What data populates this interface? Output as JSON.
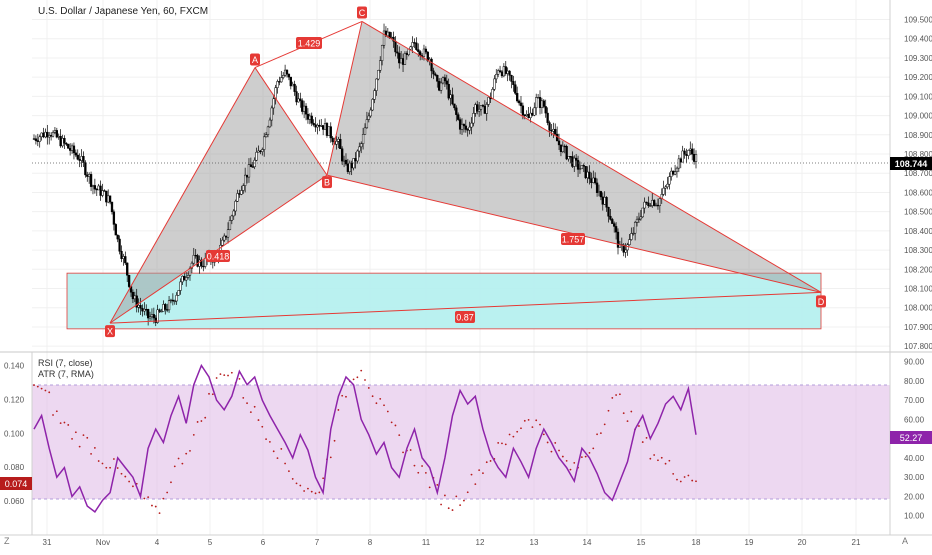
{
  "header": {
    "title": "U.S. Dollar / Japanese Yen, 60, FXCM"
  },
  "price_scale": {
    "ticks": [
      "109.500",
      "109.400",
      "109.300",
      "109.200",
      "109.100",
      "109.000",
      "108.900",
      "108.800",
      "108.700",
      "108.600",
      "108.500",
      "108.400",
      "108.300",
      "108.200",
      "108.100",
      "108.000",
      "107.900",
      "107.800"
    ],
    "last_price": "108.744"
  },
  "indicators": {
    "rsi_label": "RSI (7, close)",
    "atr_label": "ATR (7, RMA)",
    "atr_ticks": [
      "0.140",
      "0.120",
      "0.100",
      "0.080",
      "0.060"
    ],
    "rsi_ticks": [
      "90.00",
      "80.00",
      "70.00",
      "60.00",
      "50.00",
      "40.00",
      "30.00",
      "20.00",
      "10.00"
    ],
    "rsi_value": "52.27",
    "atr_value": "0.074"
  },
  "time_axis": {
    "labels": [
      "31",
      "Nov",
      "4",
      "5",
      "6",
      "7",
      "8",
      "11",
      "12",
      "13",
      "14",
      "15",
      "18",
      "19",
      "20",
      "21"
    ],
    "left_corner": "Z",
    "right_corner": "A"
  },
  "pattern": {
    "points": [
      {
        "label": "X",
        "price": 107.92
      },
      {
        "label": "A",
        "price": 109.25
      },
      {
        "label": "B",
        "price": 108.69
      },
      {
        "label": "C",
        "price": 109.49
      },
      {
        "label": "D",
        "price": 108.08
      }
    ],
    "ratios": [
      "1.429",
      "0.418",
      "1.757",
      "0.87"
    ]
  },
  "colors": {
    "up": "#26a69a",
    "candle": "#000000",
    "pattern_fill": "#9e9e9e",
    "pattern_line": "#e53935",
    "zone_fill": "#b2f0ee",
    "rsi": "#8e24aa",
    "rsi_band": "#e1bee7",
    "atr": "#b71c1c",
    "label_bg": "#e53935"
  },
  "chart_data": {
    "type": "candlestick",
    "title": "U.S. Dollar / Japanese Yen, 60, FXCM",
    "ylim": [
      107.78,
      109.56
    ],
    "rsi_ylim": [
      0,
      95
    ],
    "rsi_band": [
      20,
      80
    ],
    "atr_ylim": [
      0.04,
      0.148
    ],
    "close_path": [
      [
        0,
        108.88
      ],
      [
        2,
        108.92
      ],
      [
        4,
        108.85
      ],
      [
        6,
        108.78
      ],
      [
        8,
        108.62
      ],
      [
        9,
        108.6
      ],
      [
        10,
        108.55
      ],
      [
        11,
        108.35
      ],
      [
        12,
        108.22
      ],
      [
        13,
        108.05
      ],
      [
        14,
        108.0
      ],
      [
        15,
        107.95
      ],
      [
        16,
        107.95
      ],
      [
        17,
        107.99
      ],
      [
        18,
        108.02
      ],
      [
        19,
        108.1
      ],
      [
        20,
        108.18
      ],
      [
        21,
        108.25
      ],
      [
        22,
        108.23
      ],
      [
        23,
        108.25
      ],
      [
        24,
        108.27
      ],
      [
        25,
        108.35
      ],
      [
        26,
        108.48
      ],
      [
        27,
        108.62
      ],
      [
        28,
        108.7
      ],
      [
        29,
        108.76
      ],
      [
        30,
        108.85
      ],
      [
        31,
        109.0
      ],
      [
        32,
        109.18
      ],
      [
        33,
        109.22
      ],
      [
        34,
        109.15
      ],
      [
        35,
        109.05
      ],
      [
        36,
        109.0
      ],
      [
        37,
        108.97
      ],
      [
        38,
        108.95
      ],
      [
        39,
        108.9
      ],
      [
        40,
        108.85
      ],
      [
        41,
        108.72
      ],
      [
        42,
        108.75
      ],
      [
        43,
        108.85
      ],
      [
        44,
        109.0
      ],
      [
        45,
        109.2
      ],
      [
        46,
        109.42
      ],
      [
        47,
        109.4
      ],
      [
        48,
        109.28
      ],
      [
        49,
        109.3
      ],
      [
        50,
        109.38
      ],
      [
        51,
        109.33
      ],
      [
        52,
        109.3
      ],
      [
        53,
        109.15
      ],
      [
        54,
        109.18
      ],
      [
        55,
        109.05
      ],
      [
        56,
        108.95
      ],
      [
        57,
        108.92
      ],
      [
        58,
        109.05
      ],
      [
        59,
        109.02
      ],
      [
        60,
        109.1
      ],
      [
        61,
        109.25
      ],
      [
        62,
        109.22
      ],
      [
        63,
        109.15
      ],
      [
        64,
        109.05
      ],
      [
        65,
        108.98
      ],
      [
        66,
        109.08
      ],
      [
        67,
        109.05
      ],
      [
        68,
        108.92
      ],
      [
        69,
        108.85
      ],
      [
        70,
        108.8
      ],
      [
        71,
        108.75
      ],
      [
        72,
        108.72
      ],
      [
        73,
        108.68
      ],
      [
        74,
        108.62
      ],
      [
        75,
        108.55
      ],
      [
        76,
        108.45
      ],
      [
        77,
        108.3
      ],
      [
        78,
        108.32
      ],
      [
        79,
        108.42
      ],
      [
        80,
        108.52
      ],
      [
        81,
        108.56
      ],
      [
        82,
        108.55
      ],
      [
        83,
        108.62
      ],
      [
        84,
        108.72
      ],
      [
        85,
        108.78
      ],
      [
        86,
        108.82
      ],
      [
        87,
        108.78
      ]
    ],
    "rsi_path": [
      [
        0,
        55
      ],
      [
        1,
        62
      ],
      [
        2,
        45
      ],
      [
        3,
        30
      ],
      [
        4,
        35
      ],
      [
        5,
        20
      ],
      [
        6,
        25
      ],
      [
        7,
        15
      ],
      [
        8,
        12
      ],
      [
        9,
        18
      ],
      [
        10,
        22
      ],
      [
        11,
        40
      ],
      [
        12,
        35
      ],
      [
        13,
        30
      ],
      [
        14,
        20
      ],
      [
        15,
        45
      ],
      [
        16,
        55
      ],
      [
        17,
        48
      ],
      [
        18,
        62
      ],
      [
        19,
        72
      ],
      [
        20,
        58
      ],
      [
        21,
        78
      ],
      [
        22,
        88
      ],
      [
        23,
        82
      ],
      [
        24,
        70
      ],
      [
        25,
        65
      ],
      [
        26,
        72
      ],
      [
        27,
        85
      ],
      [
        28,
        78
      ],
      [
        29,
        82
      ],
      [
        30,
        70
      ],
      [
        31,
        62
      ],
      [
        32,
        55
      ],
      [
        33,
        48
      ],
      [
        34,
        40
      ],
      [
        35,
        52
      ],
      [
        36,
        44
      ],
      [
        37,
        30
      ],
      [
        38,
        22
      ],
      [
        39,
        55
      ],
      [
        40,
        72
      ],
      [
        41,
        82
      ],
      [
        42,
        78
      ],
      [
        43,
        60
      ],
      [
        44,
        52
      ],
      [
        45,
        42
      ],
      [
        46,
        48
      ],
      [
        47,
        35
      ],
      [
        48,
        30
      ],
      [
        49,
        45
      ],
      [
        50,
        55
      ],
      [
        51,
        40
      ],
      [
        52,
        35
      ],
      [
        53,
        22
      ],
      [
        54,
        40
      ],
      [
        55,
        62
      ],
      [
        56,
        75
      ],
      [
        57,
        68
      ],
      [
        58,
        72
      ],
      [
        59,
        55
      ],
      [
        60,
        42
      ],
      [
        61,
        35
      ],
      [
        62,
        30
      ],
      [
        63,
        45
      ],
      [
        64,
        38
      ],
      [
        65,
        30
      ],
      [
        66,
        45
      ],
      [
        67,
        55
      ],
      [
        68,
        48
      ],
      [
        69,
        40
      ],
      [
        70,
        35
      ],
      [
        71,
        28
      ],
      [
        72,
        45
      ],
      [
        73,
        40
      ],
      [
        74,
        32
      ],
      [
        75,
        22
      ],
      [
        76,
        18
      ],
      [
        77,
        28
      ],
      [
        78,
        38
      ],
      [
        79,
        55
      ],
      [
        80,
        62
      ],
      [
        81,
        50
      ],
      [
        82,
        58
      ],
      [
        83,
        68
      ],
      [
        84,
        72
      ],
      [
        85,
        65
      ],
      [
        86,
        76
      ],
      [
        87,
        52
      ]
    ],
    "atr_path": [
      [
        0,
        0.131
      ],
      [
        1,
        0.125
      ],
      [
        2,
        0.12
      ],
      [
        3,
        0.11
      ],
      [
        4,
        0.105
      ],
      [
        5,
        0.1
      ],
      [
        6,
        0.097
      ],
      [
        7,
        0.095
      ],
      [
        8,
        0.09
      ],
      [
        9,
        0.085
      ],
      [
        10,
        0.082
      ],
      [
        11,
        0.078
      ],
      [
        12,
        0.072
      ],
      [
        13,
        0.068
      ],
      [
        14,
        0.064
      ],
      [
        15,
        0.058
      ],
      [
        16,
        0.052
      ],
      [
        17,
        0.06
      ],
      [
        18,
        0.075
      ],
      [
        19,
        0.082
      ],
      [
        20,
        0.09
      ],
      [
        21,
        0.098
      ],
      [
        22,
        0.108
      ],
      [
        23,
        0.12
      ],
      [
        24,
        0.13
      ],
      [
        25,
        0.138
      ],
      [
        26,
        0.135
      ],
      [
        27,
        0.128
      ],
      [
        28,
        0.12
      ],
      [
        29,
        0.112
      ],
      [
        30,
        0.105
      ],
      [
        31,
        0.098
      ],
      [
        32,
        0.09
      ],
      [
        33,
        0.082
      ],
      [
        34,
        0.076
      ],
      [
        35,
        0.07
      ],
      [
        36,
        0.066
      ],
      [
        37,
        0.063
      ],
      [
        38,
        0.075
      ],
      [
        39,
        0.09
      ],
      [
        40,
        0.11
      ],
      [
        41,
        0.125
      ],
      [
        42,
        0.135
      ],
      [
        43,
        0.14
      ],
      [
        44,
        0.13
      ],
      [
        45,
        0.12
      ],
      [
        46,
        0.112
      ],
      [
        47,
        0.104
      ],
      [
        48,
        0.097
      ],
      [
        49,
        0.09
      ],
      [
        50,
        0.084
      ],
      [
        51,
        0.078
      ],
      [
        52,
        0.072
      ],
      [
        53,
        0.066
      ],
      [
        54,
        0.06
      ],
      [
        55,
        0.058
      ],
      [
        56,
        0.062
      ],
      [
        57,
        0.068
      ],
      [
        58,
        0.075
      ],
      [
        59,
        0.08
      ],
      [
        60,
        0.086
      ],
      [
        61,
        0.09
      ],
      [
        62,
        0.094
      ],
      [
        63,
        0.1
      ],
      [
        64,
        0.105
      ],
      [
        65,
        0.11
      ],
      [
        66,
        0.106
      ],
      [
        67,
        0.1
      ],
      [
        68,
        0.094
      ],
      [
        69,
        0.088
      ],
      [
        70,
        0.082
      ],
      [
        71,
        0.078
      ],
      [
        72,
        0.084
      ],
      [
        73,
        0.09
      ],
      [
        74,
        0.1
      ],
      [
        75,
        0.11
      ],
      [
        76,
        0.118
      ],
      [
        77,
        0.12
      ],
      [
        78,
        0.112
      ],
      [
        79,
        0.104
      ],
      [
        80,
        0.096
      ],
      [
        81,
        0.09
      ],
      [
        82,
        0.086
      ],
      [
        83,
        0.082
      ],
      [
        84,
        0.078
      ],
      [
        85,
        0.076
      ],
      [
        86,
        0.075
      ],
      [
        87,
        0.074
      ]
    ]
  }
}
